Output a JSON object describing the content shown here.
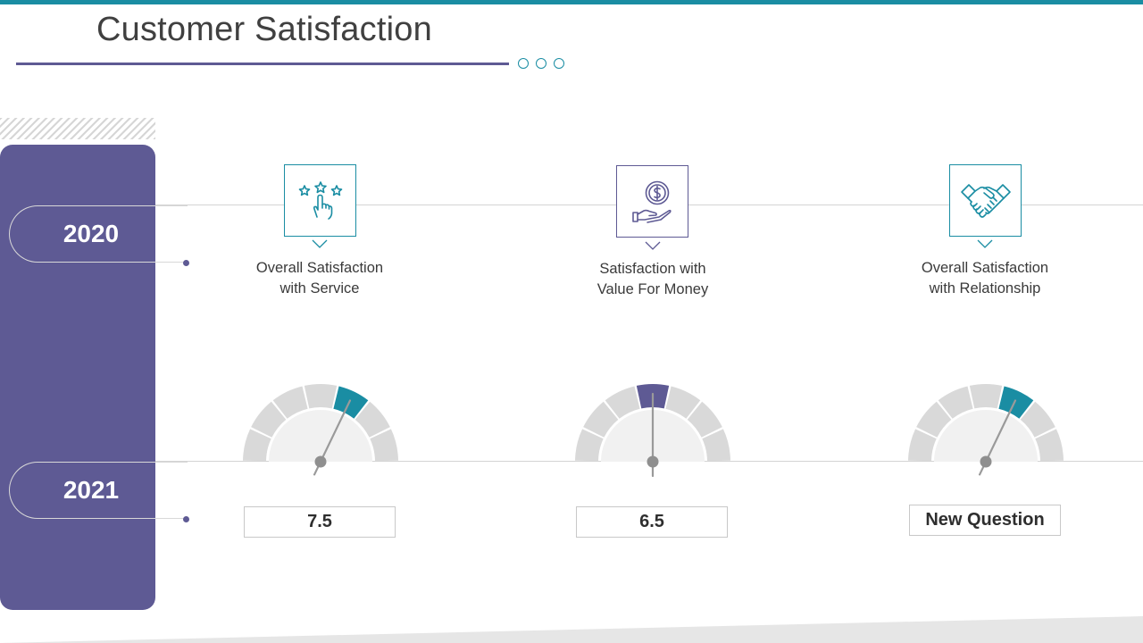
{
  "slide": {
    "title": "Customer Satisfaction"
  },
  "years": [
    {
      "label": "2020"
    },
    {
      "label": "2021"
    }
  ],
  "metrics": [
    {
      "label_line1": "Overall Satisfaction",
      "label_line2": "with Service",
      "icon": "rating-stars-hand-icon",
      "value": "7.5",
      "accent": "#1a8da3",
      "highlight_segment": 4
    },
    {
      "label_line1": "Satisfaction with",
      "label_line2": "Value For Money",
      "icon": "money-hand-icon",
      "value": "6.5",
      "accent": "#5e5a94",
      "highlight_segment": 3
    },
    {
      "label_line1": "Overall Satisfaction",
      "label_line2": "with Relationship",
      "icon": "handshake-icon",
      "value": "New Question",
      "accent": "#1a8da3",
      "highlight_segment": 4
    }
  ],
  "colors": {
    "primary": "#5e5a94",
    "teal": "#1a8da3",
    "gauge_grey": "#d9d9d9"
  }
}
